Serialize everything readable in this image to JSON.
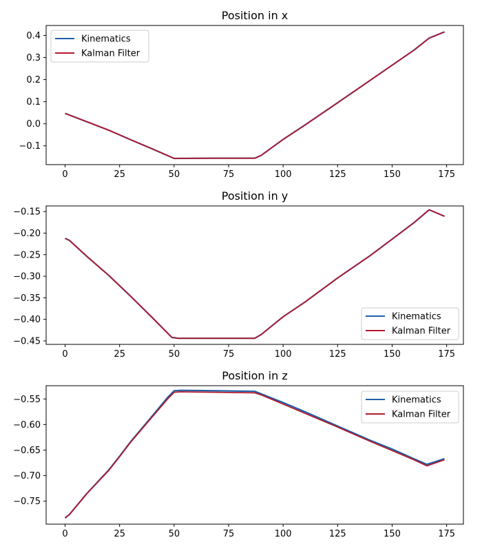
{
  "chart_data": [
    {
      "type": "line",
      "title": "Position in x",
      "xlabel": "",
      "ylabel": "",
      "xlim": [
        -8.7,
        182.7
      ],
      "ylim": [
        -0.185,
        0.445
      ],
      "xticks": [
        0,
        25,
        50,
        75,
        100,
        125,
        150,
        175
      ],
      "yticks": [
        -0.1,
        0.0,
        0.1,
        0.2,
        0.3,
        0.4
      ],
      "ytick_labels": [
        "−0.1",
        "0.0",
        "0.1",
        "0.2",
        "0.3",
        "0.4"
      ],
      "legend_position": "top-left",
      "grid": false,
      "series": [
        {
          "name": "Kinematics",
          "color": "#1f5fa8",
          "points": [
            [
              0,
              0.047
            ],
            [
              10,
              0.009
            ],
            [
              20,
              -0.029
            ],
            [
              30,
              -0.072
            ],
            [
              40,
              -0.114
            ],
            [
              50,
              -0.157
            ],
            [
              70,
              -0.156
            ],
            [
              87,
              -0.156
            ],
            [
              90,
              -0.143
            ],
            [
              100,
              -0.071
            ],
            [
              110,
              -0.006
            ],
            [
              125,
              0.095
            ],
            [
              140,
              0.197
            ],
            [
              160,
              0.333
            ],
            [
              167,
              0.388
            ],
            [
              174,
              0.416
            ]
          ]
        },
        {
          "name": "Kalman Filter",
          "color": "#b2182b",
          "points": [
            [
              0,
              0.047
            ],
            [
              10,
              0.009
            ],
            [
              20,
              -0.029
            ],
            [
              30,
              -0.072
            ],
            [
              40,
              -0.114
            ],
            [
              50,
              -0.157
            ],
            [
              70,
              -0.156
            ],
            [
              87,
              -0.156
            ],
            [
              90,
              -0.143
            ],
            [
              100,
              -0.071
            ],
            [
              110,
              -0.006
            ],
            [
              125,
              0.095
            ],
            [
              140,
              0.197
            ],
            [
              160,
              0.333
            ],
            [
              167,
              0.388
            ],
            [
              174,
              0.416
            ]
          ]
        }
      ]
    },
    {
      "type": "line",
      "title": "Position in y",
      "xlabel": "",
      "ylabel": "",
      "xlim": [
        -8.7,
        182.7
      ],
      "ylim": [
        -0.458,
        -0.137
      ],
      "xticks": [
        0,
        25,
        50,
        75,
        100,
        125,
        150,
        175
      ],
      "yticks": [
        -0.45,
        -0.4,
        -0.35,
        -0.3,
        -0.25,
        -0.2,
        -0.15
      ],
      "ytick_labels": [
        "−0.45",
        "−0.40",
        "−0.35",
        "−0.30",
        "−0.25",
        "−0.20",
        "−0.15"
      ],
      "legend_position": "lower-right",
      "grid": false,
      "series": [
        {
          "name": "Kinematics",
          "color": "#1f5fa8",
          "points": [
            [
              0,
              -0.212
            ],
            [
              2,
              -0.217
            ],
            [
              10,
              -0.254
            ],
            [
              20,
              -0.298
            ],
            [
              30,
              -0.346
            ],
            [
              40,
              -0.396
            ],
            [
              49,
              -0.442
            ],
            [
              52,
              -0.444
            ],
            [
              70,
              -0.444
            ],
            [
              87,
              -0.444
            ],
            [
              90,
              -0.435
            ],
            [
              100,
              -0.394
            ],
            [
              110,
              -0.36
            ],
            [
              125,
              -0.304
            ],
            [
              140,
              -0.252
            ],
            [
              150,
              -0.214
            ],
            [
              160,
              -0.176
            ],
            [
              167,
              -0.146
            ],
            [
              174,
              -0.161
            ]
          ]
        },
        {
          "name": "Kalman Filter",
          "color": "#b2182b",
          "points": [
            [
              0,
              -0.212
            ],
            [
              2,
              -0.217
            ],
            [
              10,
              -0.254
            ],
            [
              20,
              -0.298
            ],
            [
              30,
              -0.346
            ],
            [
              40,
              -0.396
            ],
            [
              49,
              -0.442
            ],
            [
              52,
              -0.444
            ],
            [
              70,
              -0.444
            ],
            [
              87,
              -0.444
            ],
            [
              90,
              -0.435
            ],
            [
              100,
              -0.394
            ],
            [
              110,
              -0.36
            ],
            [
              125,
              -0.304
            ],
            [
              140,
              -0.252
            ],
            [
              150,
              -0.214
            ],
            [
              160,
              -0.176
            ],
            [
              167,
              -0.146
            ],
            [
              174,
              -0.161
            ]
          ]
        }
      ]
    },
    {
      "type": "line",
      "title": "Position in z",
      "xlabel": "",
      "ylabel": "",
      "xlim": [
        -8.7,
        182.7
      ],
      "ylim": [
        -0.795,
        -0.524
      ],
      "xticks": [
        0,
        25,
        50,
        75,
        100,
        125,
        150,
        175
      ],
      "yticks": [
        -0.75,
        -0.7,
        -0.65,
        -0.6,
        -0.55
      ],
      "ytick_labels": [
        "−0.75",
        "−0.70",
        "−0.65",
        "−0.60",
        "−0.55"
      ],
      "legend_position": "top-right",
      "grid": false,
      "series": [
        {
          "name": "Kinematics",
          "color": "#1f5fa8",
          "points": [
            [
              0,
              -0.783
            ],
            [
              2,
              -0.776
            ],
            [
              10,
              -0.735
            ],
            [
              20,
              -0.689
            ],
            [
              25,
              -0.662
            ],
            [
              30,
              -0.634
            ],
            [
              40,
              -0.583
            ],
            [
              47,
              -0.547
            ],
            [
              50,
              -0.534
            ],
            [
              53,
              -0.533
            ],
            [
              70,
              -0.534
            ],
            [
              87,
              -0.535
            ],
            [
              90,
              -0.54
            ],
            [
              100,
              -0.557
            ],
            [
              110,
              -0.575
            ],
            [
              125,
              -0.603
            ],
            [
              140,
              -0.631
            ],
            [
              150,
              -0.648
            ],
            [
              160,
              -0.667
            ],
            [
              166,
              -0.678
            ],
            [
              174,
              -0.667
            ]
          ]
        },
        {
          "name": "Kalman Filter",
          "color": "#b2182b",
          "points": [
            [
              0,
              -0.783
            ],
            [
              2,
              -0.776
            ],
            [
              10,
              -0.735
            ],
            [
              20,
              -0.69
            ],
            [
              25,
              -0.663
            ],
            [
              30,
              -0.635
            ],
            [
              40,
              -0.585
            ],
            [
              47,
              -0.55
            ],
            [
              50,
              -0.537
            ],
            [
              53,
              -0.536
            ],
            [
              70,
              -0.537
            ],
            [
              87,
              -0.538
            ],
            [
              90,
              -0.542
            ],
            [
              100,
              -0.56
            ],
            [
              110,
              -0.578
            ],
            [
              125,
              -0.605
            ],
            [
              140,
              -0.633
            ],
            [
              150,
              -0.651
            ],
            [
              160,
              -0.669
            ],
            [
              166,
              -0.681
            ],
            [
              174,
              -0.669
            ]
          ]
        }
      ]
    }
  ]
}
